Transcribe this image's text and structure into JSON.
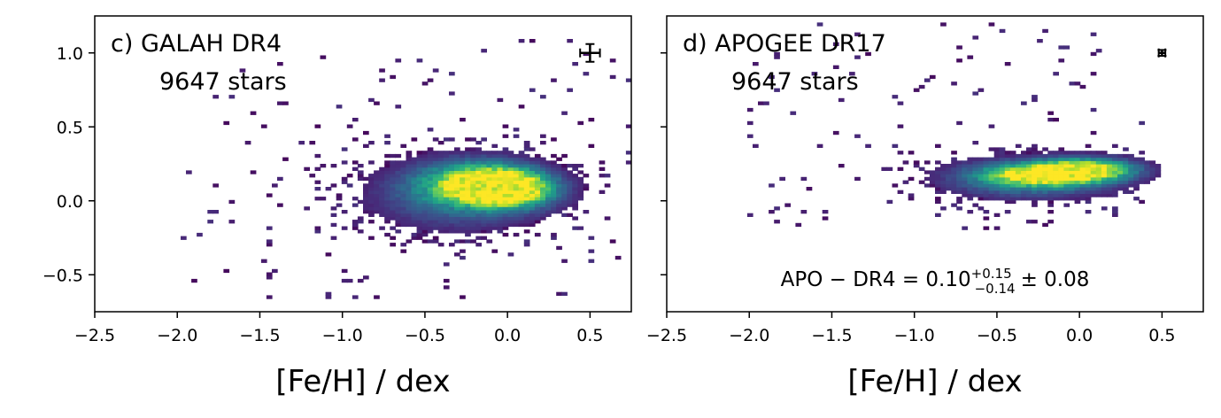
{
  "chart_data": [
    {
      "type": "heatmap",
      "panel_label": "c) GALAH DR4",
      "count_label": "9647 stars",
      "xlabel": "[Fe/H] / dex",
      "ylabel": "",
      "xlim": [
        -2.5,
        0.75
      ],
      "ylim": [
        -0.75,
        1.25
      ],
      "x_ticks": [
        -2.5,
        -2.0,
        -1.5,
        -1.0,
        -0.5,
        0.0,
        0.5
      ],
      "x_tick_labels": [
        "−2.5",
        "−2.0",
        "−1.5",
        "−1.0",
        "−0.5",
        "0.0",
        "0.5"
      ],
      "y_ticks": [
        -0.5,
        0.0,
        0.5,
        1.0
      ],
      "y_tick_labels": [
        "−0.5",
        "0.0",
        "0.5",
        "1.0"
      ],
      "colormap": "viridis",
      "density_cores": [
        {
          "x": -0.15,
          "y": 0.12,
          "sx": 0.22,
          "sy": 0.09,
          "weight": 1.0
        },
        {
          "x": 0.02,
          "y": 0.08,
          "sx": 0.18,
          "sy": 0.08,
          "weight": 1.0
        },
        {
          "x": -0.3,
          "y": 0.05,
          "sx": 0.35,
          "sy": 0.16,
          "weight": 0.45
        }
      ],
      "scatter_extent": {
        "x": [
          -2.0,
          0.75
        ],
        "y": [
          -0.7,
          1.1
        ]
      },
      "error_bar": {
        "x": 0.5,
        "y": 1.0,
        "xerr": 0.06,
        "yerr": 0.06
      },
      "annotation": ""
    },
    {
      "type": "heatmap",
      "panel_label": "d) APOGEE DR17",
      "count_label": "9647 stars",
      "xlabel": "[Fe/H] / dex",
      "ylabel": "",
      "xlim": [
        -2.5,
        0.75
      ],
      "ylim": [
        -0.75,
        1.25
      ],
      "x_ticks": [
        -2.5,
        -2.0,
        -1.5,
        -1.0,
        -0.5,
        0.0,
        0.5
      ],
      "x_tick_labels": [
        "−2.5",
        "−2.0",
        "−1.5",
        "−1.0",
        "−0.5",
        "0.0",
        "0.5"
      ],
      "y_ticks": [
        -0.5,
        0.0,
        0.5,
        1.0
      ],
      "y_tick_labels": [
        "",
        "",
        "",
        ""
      ],
      "colormap": "viridis",
      "density_cores": [
        {
          "x": -0.2,
          "y": 0.18,
          "sx": 0.25,
          "sy": 0.05,
          "weight": 1.0
        },
        {
          "x": 0.05,
          "y": 0.22,
          "sx": 0.2,
          "sy": 0.05,
          "weight": 0.9
        },
        {
          "x": -0.3,
          "y": 0.15,
          "sx": 0.35,
          "sy": 0.09,
          "weight": 0.5
        }
      ],
      "scatter_extent": {
        "x": [
          -2.0,
          0.4
        ],
        "y": [
          -0.2,
          1.2
        ]
      },
      "error_bar": {
        "x": 0.5,
        "y": 1.0,
        "xerr": 0.02,
        "yerr": 0.02
      },
      "annotation": "APO − DR4 = 0.10 ± 0.08",
      "annotation_parts": {
        "prefix": "APO − DR4 = 0.10",
        "sup": "+0.15",
        "sub": "−0.14",
        "suffix": "± 0.08"
      }
    }
  ]
}
